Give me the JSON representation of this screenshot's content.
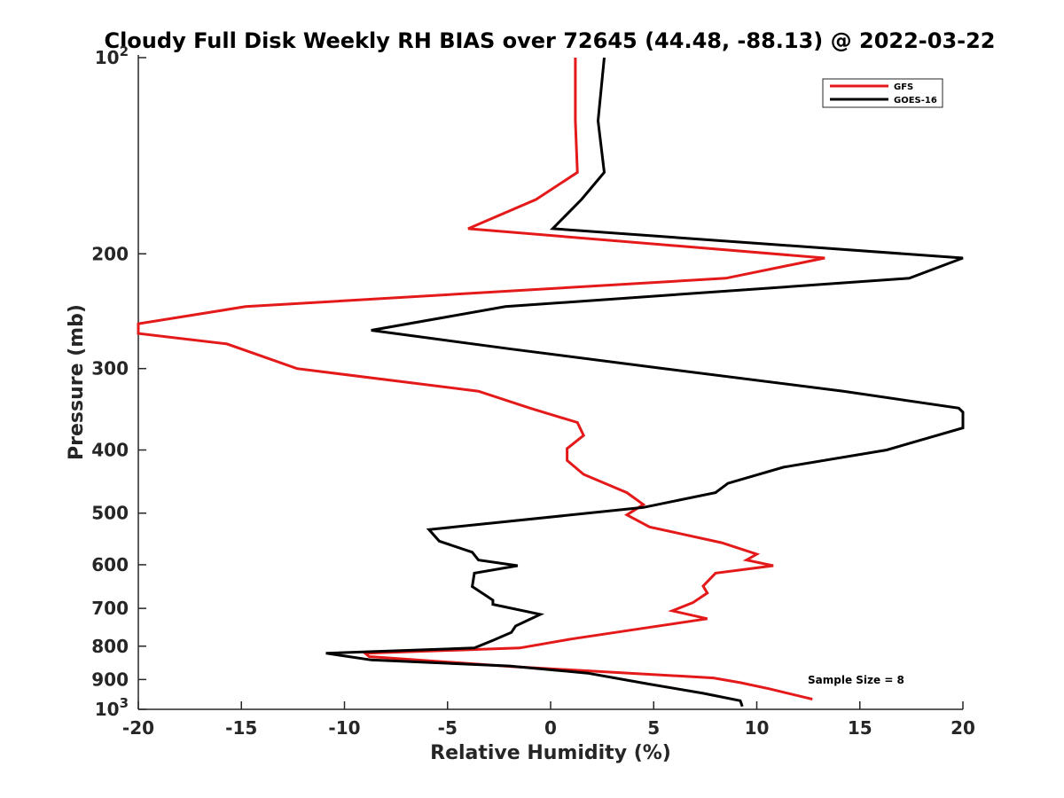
{
  "chart_data": {
    "type": "line",
    "title": "Cloudy Full Disk Weekly RH BIAS over 72645 (44.48, -88.13) @ 2022-03-22",
    "xlabel": "Relative Humidity (%)",
    "ylabel": "Pressure (mb)",
    "xlim": [
      -20,
      20
    ],
    "ylim": [
      100,
      1000
    ],
    "y_scale": "log",
    "y_reversed": true,
    "grid": false,
    "legend_position": "top-right",
    "x_ticks": [
      "-20",
      "-15",
      "-10",
      "-5",
      "0",
      "5",
      "10",
      "15",
      "20"
    ],
    "y_ticks": [
      {
        "value": 100,
        "base": "10",
        "exp": "2"
      },
      {
        "value": 200,
        "label": "200"
      },
      {
        "value": 300,
        "label": "300"
      },
      {
        "value": 400,
        "label": "400"
      },
      {
        "value": 500,
        "label": "500"
      },
      {
        "value": 600,
        "label": "600"
      },
      {
        "value": 700,
        "label": "700"
      },
      {
        "value": 800,
        "label": "800"
      },
      {
        "value": 900,
        "label": "900"
      },
      {
        "value": 1000,
        "base": "10",
        "exp": "3"
      }
    ],
    "series": [
      {
        "name": "GFS",
        "color": "#e41a1a",
        "points": [
          [
            1.2,
            100
          ],
          [
            1.2,
            125
          ],
          [
            1.3,
            150
          ],
          [
            -0.7,
            165
          ],
          [
            -4,
            183
          ],
          [
            13.3,
            203
          ],
          [
            8.5,
            218
          ],
          [
            -14.8,
            241
          ],
          [
            -20,
            256
          ],
          [
            -20,
            265
          ],
          [
            -15.7,
            275
          ],
          [
            -12.3,
            300
          ],
          [
            -3.5,
            325
          ],
          [
            -1,
            345
          ],
          [
            1.3,
            363
          ],
          [
            1.6,
            380
          ],
          [
            0.8,
            398
          ],
          [
            0.8,
            415
          ],
          [
            1.6,
            436
          ],
          [
            3.7,
            465
          ],
          [
            4.5,
            485
          ],
          [
            3.7,
            503
          ],
          [
            4.8,
            525
          ],
          [
            8.3,
            555
          ],
          [
            10,
            578
          ],
          [
            9.5,
            590
          ],
          [
            10.8,
            602
          ],
          [
            8,
            618
          ],
          [
            7.4,
            647
          ],
          [
            7.6,
            663
          ],
          [
            6.9,
            686
          ],
          [
            5.9,
            706
          ],
          [
            7.6,
            726
          ],
          [
            4.6,
            750
          ],
          [
            1,
            780
          ],
          [
            -1.5,
            805
          ],
          [
            -9,
            820
          ],
          [
            -8.8,
            830
          ],
          [
            -1.8,
            860
          ],
          [
            3.8,
            880
          ],
          [
            7.9,
            895
          ],
          [
            9.2,
            910
          ],
          [
            10.6,
            930
          ],
          [
            12.7,
            965
          ]
        ]
      },
      {
        "name": "GOES-16",
        "color": "#000000",
        "points": [
          [
            2.6,
            100
          ],
          [
            2.3,
            125
          ],
          [
            2.6,
            150
          ],
          [
            1.5,
            165
          ],
          [
            0.1,
            183
          ],
          [
            20,
            203
          ],
          [
            17.4,
            218
          ],
          [
            -2.2,
            241
          ],
          [
            -8.7,
            262
          ],
          [
            -1.9,
            280
          ],
          [
            5.5,
            300
          ],
          [
            14.2,
            325
          ],
          [
            19.8,
            345
          ],
          [
            20,
            350
          ],
          [
            20,
            370
          ],
          [
            16.3,
            400
          ],
          [
            11.3,
            425
          ],
          [
            8.6,
            450
          ],
          [
            8,
            465
          ],
          [
            4.5,
            490
          ],
          [
            -5.9,
            530
          ],
          [
            -5.4,
            552
          ],
          [
            -3.8,
            574
          ],
          [
            -3.5,
            590
          ],
          [
            -1.6,
            602
          ],
          [
            -3.7,
            618
          ],
          [
            -3.8,
            648
          ],
          [
            -3.1,
            670
          ],
          [
            -2.8,
            680
          ],
          [
            -2.8,
            690
          ],
          [
            -0.5,
            715
          ],
          [
            -1.7,
            745
          ],
          [
            -1.9,
            762
          ],
          [
            -2.8,
            784
          ],
          [
            -3.7,
            805
          ],
          [
            -10.9,
            820
          ],
          [
            -8.7,
            840
          ],
          [
            -2,
            858
          ],
          [
            1.8,
            880
          ],
          [
            4.8,
            915
          ],
          [
            7.4,
            945
          ],
          [
            9.2,
            970
          ],
          [
            9.3,
            990
          ]
        ]
      }
    ],
    "annotation": "Sample Size = 8"
  }
}
